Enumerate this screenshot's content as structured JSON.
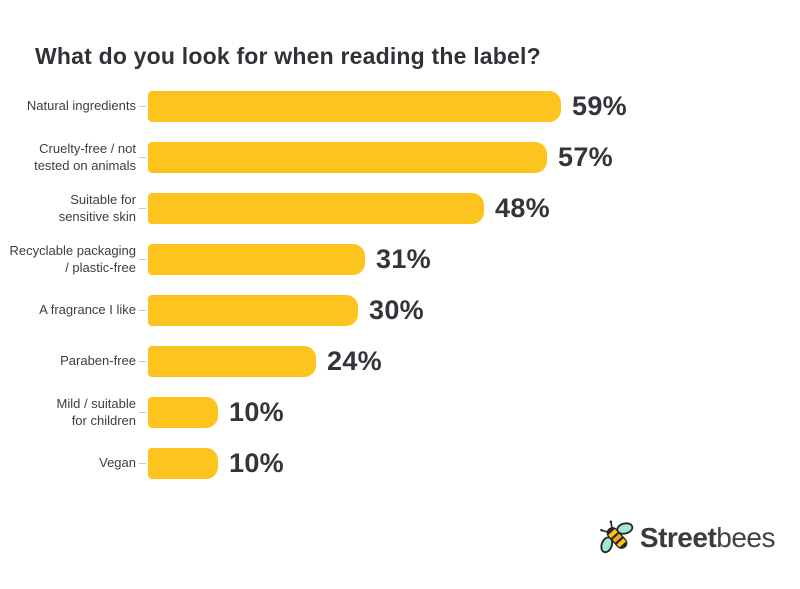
{
  "chart_data": {
    "type": "bar",
    "orientation": "horizontal",
    "title": "What do you look for when reading the label?",
    "categories": [
      "Natural ingredients",
      "Cruelty-free / not tested on animals",
      "Suitable for sensitive skin",
      "Recyclable packaging / plastic-free",
      "A fragrance I like",
      "Paraben-free",
      "Mild / suitable for children",
      "Vegan"
    ],
    "labels_wrapped": [
      "Natural ingredients",
      "Cruelty-free / not\ntested on animals",
      "Suitable for\nsensitive skin",
      "Recyclable packaging\n/ plastic-free",
      "A fragrance I like",
      "Paraben-free",
      "Mild / suitable\nfor children",
      "Vegan"
    ],
    "values": [
      59,
      57,
      48,
      31,
      30,
      24,
      10,
      10
    ],
    "value_suffix": "%",
    "xlim": [
      0,
      59
    ],
    "grid": false,
    "legend": false,
    "bar_color": "#fcc41d",
    "value_color": "#32363b",
    "label_color": "#3a3e44",
    "tick_color": "#c9c9c9"
  },
  "logo": {
    "brand_bold": "Street",
    "brand_light": "bees",
    "icon": "bee-icon",
    "bee_colors": {
      "wing": "#a9e6d2",
      "body_yellow": "#ffc20e",
      "body_orange": "#f5a31c",
      "outline": "#262626"
    }
  }
}
